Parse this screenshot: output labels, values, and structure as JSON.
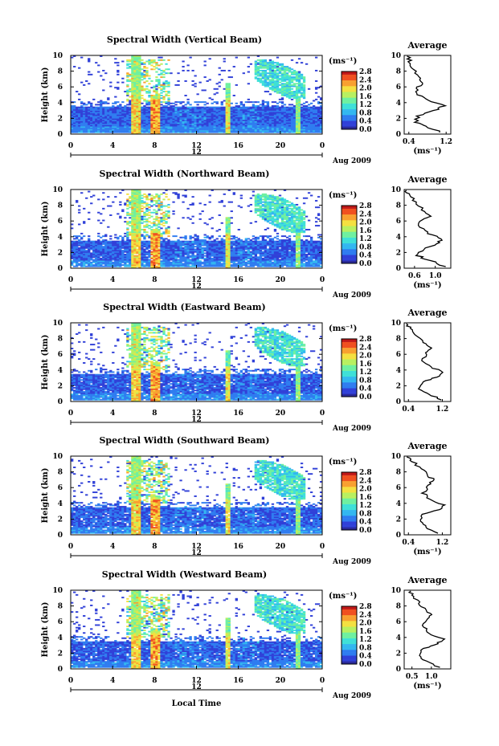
{
  "colors": {
    "background": "#ffffff",
    "axis": "#000000",
    "colormap": [
      "#2a2a9a",
      "#3040d8",
      "#2f7cf0",
      "#33b7f0",
      "#3fe0d8",
      "#6ff0a0",
      "#b8f060",
      "#f4e040",
      "#f8a030",
      "#f05020",
      "#c01818"
    ]
  },
  "shared": {
    "colorbar_unit": "(ms⁻¹)",
    "colorbar_ticks": [
      "0.0",
      "0.4",
      "0.8",
      "1.2",
      "1.6",
      "2.0",
      "2.4",
      "2.8"
    ],
    "height_label": "Height (km)",
    "y_ticks": [
      "0",
      "2",
      "4",
      "6",
      "8",
      "10"
    ],
    "x_ticks": [
      "0",
      "4",
      "8",
      "12",
      "16",
      "20",
      "0"
    ],
    "date_center": "12",
    "date_label": "Aug 2009",
    "average_title": "Average",
    "average_xlabel": "(ms⁻¹)",
    "xaxis_label": "Local Time"
  },
  "chart_data": [
    {
      "type": "heatmap",
      "title": "Spectral Width (Vertical Beam)",
      "xlabel": "",
      "ylabel": "Height (km)",
      "xlim": [
        0,
        24
      ],
      "ylim": [
        0,
        10
      ],
      "zlim": [
        0.0,
        2.8
      ],
      "average": {
        "title": "Average",
        "xlabel": "(ms⁻¹)",
        "xlim": [
          0.3,
          1.3
        ],
        "x_ticks": [
          "0.4",
          "1.2"
        ],
        "profile": [
          [
            1.1,
            0.2
          ],
          [
            0.75,
            1
          ],
          [
            0.55,
            1.5
          ],
          [
            0.6,
            2.3
          ],
          [
            0.95,
            3
          ],
          [
            1.15,
            3.6
          ],
          [
            0.85,
            4.3
          ],
          [
            0.6,
            5
          ],
          [
            0.55,
            5.8
          ],
          [
            0.7,
            6.5
          ],
          [
            0.6,
            7.3
          ],
          [
            0.5,
            8.2
          ],
          [
            0.42,
            9.2
          ],
          [
            0.4,
            9.9
          ]
        ]
      }
    },
    {
      "type": "heatmap",
      "title": "Spectral Width (Northward Beam)",
      "xlabel": "",
      "ylabel": "Height (km)",
      "xlim": [
        0,
        24
      ],
      "ylim": [
        0,
        10
      ],
      "zlim": [
        0.0,
        2.8
      ],
      "average": {
        "title": "Average",
        "xlabel": "(ms⁻¹)",
        "xlim": [
          0.4,
          1.3
        ],
        "x_ticks": [
          "0.6",
          "1.0"
        ],
        "profile": [
          [
            1.2,
            0.2
          ],
          [
            0.9,
            1
          ],
          [
            0.65,
            1.6
          ],
          [
            0.75,
            2.4
          ],
          [
            1.05,
            3.1
          ],
          [
            1.15,
            3.7
          ],
          [
            0.85,
            4.4
          ],
          [
            0.7,
            5.2
          ],
          [
            0.75,
            6.2
          ],
          [
            0.95,
            6.6
          ],
          [
            0.75,
            7.4
          ],
          [
            0.6,
            8.4
          ],
          [
            0.5,
            9.3
          ],
          [
            0.45,
            9.9
          ]
        ]
      }
    },
    {
      "type": "heatmap",
      "title": "Spectral Width (Eastward Beam)",
      "xlabel": "",
      "ylabel": "Height (km)",
      "xlim": [
        0,
        24
      ],
      "ylim": [
        0,
        10
      ],
      "zlim": [
        0.0,
        2.8
      ],
      "average": {
        "title": "Average",
        "xlabel": "",
        "xlim": [
          0.3,
          1.4
        ],
        "x_ticks": [
          "0.4",
          "1.2"
        ],
        "profile": [
          [
            1.2,
            0.2
          ],
          [
            0.9,
            0.9
          ],
          [
            0.65,
            1.6
          ],
          [
            0.75,
            2.5
          ],
          [
            1.05,
            3.1
          ],
          [
            1.25,
            3.7
          ],
          [
            0.9,
            4.4
          ],
          [
            0.75,
            5.2
          ],
          [
            0.8,
            6.2
          ],
          [
            0.95,
            6.8
          ],
          [
            0.75,
            7.5
          ],
          [
            0.55,
            8.5
          ],
          [
            0.42,
            9.3
          ],
          [
            0.38,
            9.9
          ]
        ]
      }
    },
    {
      "type": "heatmap",
      "title": "Spectral Width (Southward Beam)",
      "xlabel": "",
      "ylabel": "Height (km)",
      "xlim": [
        0,
        24
      ],
      "ylim": [
        0,
        10
      ],
      "zlim": [
        0.0,
        2.8
      ],
      "average": {
        "title": "Average",
        "xlabel": "(ms⁻¹)",
        "xlim": [
          0.3,
          1.4
        ],
        "x_ticks": [
          "0.4",
          "1.2"
        ],
        "profile": [
          [
            1.1,
            0.2
          ],
          [
            0.8,
            1
          ],
          [
            0.65,
            1.7
          ],
          [
            0.75,
            2.6
          ],
          [
            1.1,
            3.2
          ],
          [
            1.25,
            3.8
          ],
          [
            0.9,
            4.5
          ],
          [
            0.75,
            5.3
          ],
          [
            0.85,
            6.3
          ],
          [
            1.0,
            7
          ],
          [
            0.85,
            7.6
          ],
          [
            0.7,
            8.4
          ],
          [
            0.5,
            9.3
          ],
          [
            0.4,
            9.9
          ]
        ]
      }
    },
    {
      "type": "heatmap",
      "title": "Spectral Width (Westward Beam)",
      "xlabel": "Local Time",
      "ylabel": "Height (km)",
      "xlim": [
        0,
        24
      ],
      "ylim": [
        0,
        10
      ],
      "zlim": [
        0.0,
        2.8
      ],
      "average": {
        "title": "Average",
        "xlabel": "(ms⁻¹)",
        "xlim": [
          0.3,
          1.5
        ],
        "x_ticks": [
          "0.5",
          "1.0"
        ],
        "profile": [
          [
            1.2,
            0.2
          ],
          [
            0.85,
            1
          ],
          [
            0.7,
            1.7
          ],
          [
            0.8,
            2.6
          ],
          [
            1.15,
            3.2
          ],
          [
            1.3,
            3.8
          ],
          [
            0.95,
            4.5
          ],
          [
            0.8,
            5.3
          ],
          [
            0.85,
            6.2
          ],
          [
            1.0,
            6.9
          ],
          [
            0.85,
            7.5
          ],
          [
            0.7,
            8.3
          ],
          [
            0.55,
            9.2
          ],
          [
            0.45,
            9.9
          ]
        ]
      }
    }
  ]
}
